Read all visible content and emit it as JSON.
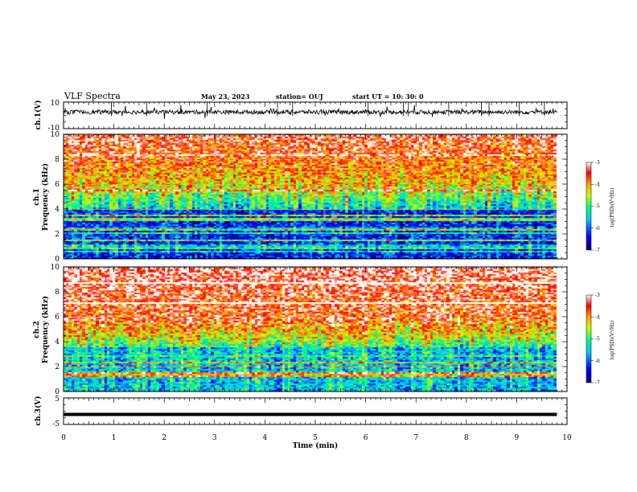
{
  "header": {
    "title": "VLF Spectra",
    "date": "May 23, 2023",
    "station": "station= OUJ",
    "start": "start  UT  =   10: 30: 0"
  },
  "chart_data": [
    {
      "type": "line",
      "id": "ch1-waveform",
      "ylabel": "ch.1(V)",
      "xlim": [
        0,
        10
      ],
      "ylim": [
        -10,
        10
      ],
      "yticks": [
        "10",
        "-10"
      ],
      "x_extent": [
        0,
        9.8
      ],
      "baseline": 2.5,
      "note_spikes": [
        0.95,
        1.65,
        2.85,
        4.25,
        4.55,
        6.05,
        6.75,
        6.85,
        7.65,
        8.3,
        8.45,
        9.05,
        9.55
      ]
    },
    {
      "type": "heatmap",
      "id": "ch1-spectrogram",
      "ylabel": "ch.1\nFrequency (kHz)",
      "ylabel_lines": [
        "ch.1",
        "Frequency (kHz)"
      ],
      "xlim": [
        0,
        10
      ],
      "ylim": [
        0,
        10
      ],
      "yticks": [
        "0",
        "2",
        "4",
        "6",
        "8",
        "10"
      ],
      "x_extent": [
        0,
        9.8
      ],
      "colorbar": {
        "label": "log(PSD)(V²/Hz)",
        "range": [
          -7,
          -3
        ],
        "ticks": [
          "-3",
          "-4",
          "-5",
          "-6",
          "-7"
        ]
      },
      "description_levels": {
        "upper_band_kHz": [
          6,
          10
        ],
        "lower_band_kHz": [
          0,
          4
        ]
      }
    },
    {
      "type": "heatmap",
      "id": "ch2-spectrogram",
      "ylabel": "ch.2\nFrequency (kHz)",
      "ylabel_lines": [
        "ch.2",
        "Frequency (kHz)"
      ],
      "xlim": [
        0,
        10
      ],
      "ylim": [
        0,
        10
      ],
      "yticks": [
        "0",
        "2",
        "4",
        "6",
        "8",
        "10"
      ],
      "x_extent": [
        0,
        9.8
      ],
      "colorbar": {
        "label": "log(PSD)(V²/Hz)",
        "range": [
          -7,
          -3
        ],
        "ticks": [
          "-3",
          "-4",
          "-5",
          "-6",
          "-7"
        ]
      }
    },
    {
      "type": "line",
      "id": "ch3-waveform",
      "ylabel": "ch.3(V)",
      "xlim": [
        0,
        10
      ],
      "ylim": [
        -5,
        5
      ],
      "yticks": [
        "5",
        "-5"
      ],
      "x_extent": [
        0,
        9.8
      ],
      "constant_value": -1.2
    }
  ],
  "xaxis": {
    "label": "Time  (min)",
    "ticks": [
      "0",
      "1",
      "2",
      "3",
      "4",
      "5",
      "6",
      "7",
      "8",
      "9",
      "10"
    ]
  },
  "colors": {
    "waveform": "#000000",
    "colormap": [
      "#00007a",
      "#0000ff",
      "#00c8ff",
      "#00ff80",
      "#c8ff00",
      "#ffa000",
      "#ff0000",
      "#ffffff"
    ]
  }
}
